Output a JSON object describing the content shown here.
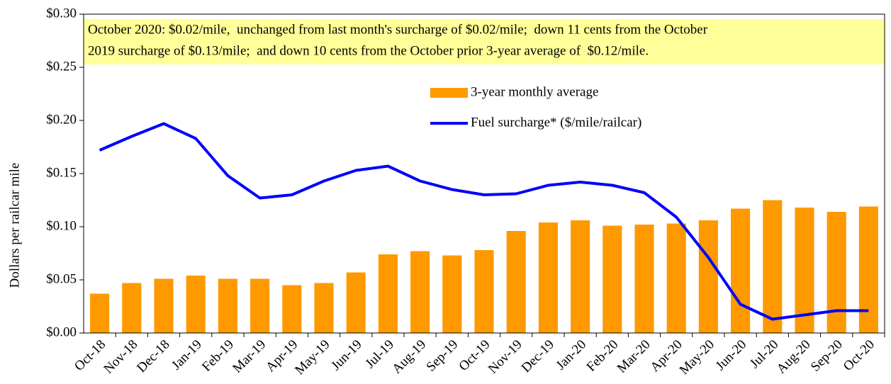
{
  "chart_data": {
    "type": "bar",
    "y_label": "Dollars per railcar mile",
    "annotation": [
      "October 2020: $0.02/mile,  unchanged from last month's surcharge of $0.02/mile;  down 11 cents from the October",
      "2019 surcharge of $0.13/mile;  and down 10 cents from the October prior 3-year average of  $0.12/mile."
    ],
    "categories": [
      "Oct-18",
      "Nov-18",
      "Dec-18",
      "Jan-19",
      "Feb-19",
      "Mar-19",
      "Apr-19",
      "May-19",
      "Jun-19",
      "Jul-19",
      "Aug-19",
      "Sep-19",
      "Oct-19",
      "Nov-19",
      "Dec-19",
      "Jan-20",
      "Feb-20",
      "Mar-20",
      "Apr-20",
      "May-20",
      "Jun-20",
      "Jul-20",
      "Aug-20",
      "Sep-20",
      "Oct-20"
    ],
    "series": [
      {
        "name": "3-year monthly average",
        "type": "bar",
        "color": "#ff9900",
        "values": [
          0.037,
          0.047,
          0.051,
          0.054,
          0.051,
          0.051,
          0.045,
          0.047,
          0.057,
          0.074,
          0.077,
          0.073,
          0.078,
          0.096,
          0.104,
          0.106,
          0.101,
          0.102,
          0.103,
          0.106,
          0.117,
          0.125,
          0.118,
          0.114,
          0.119
        ]
      },
      {
        "name": "Fuel surcharge* ($/mile/railcar)",
        "type": "line",
        "color": "#0000ff",
        "values": [
          0.172,
          0.185,
          0.197,
          0.183,
          0.148,
          0.127,
          0.13,
          0.143,
          0.153,
          0.157,
          0.143,
          0.135,
          0.13,
          0.131,
          0.139,
          0.142,
          0.139,
          0.132,
          0.109,
          0.071,
          0.027,
          0.013,
          0.017,
          0.021,
          0.021
        ]
      }
    ],
    "ylim": [
      0,
      0.3
    ],
    "yticks": [
      {
        "value": 0,
        "label": "$0.00"
      },
      {
        "value": 0.05,
        "label": "$0.05"
      },
      {
        "value": 0.1,
        "label": "$0.10"
      },
      {
        "value": 0.15,
        "label": "$0.15"
      },
      {
        "value": 0.2,
        "label": "$0.20"
      },
      {
        "value": 0.25,
        "label": "$0.25"
      },
      {
        "value": 0.3,
        "label": "$0.30"
      }
    ],
    "grid": false
  }
}
